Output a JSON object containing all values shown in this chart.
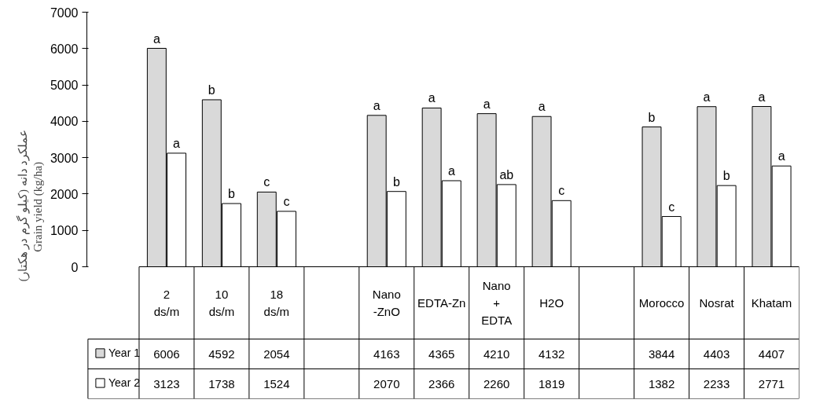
{
  "chart_data": {
    "type": "bar",
    "ylabel": "عملکرد دانه (کیلو گرم در هکتار)\nGrain  yield (kg/ha)",
    "categories": [
      "2 ds/m",
      "10 ds/m",
      "18 ds/m",
      null,
      "Nano -ZnO",
      "EDTA-Zn",
      "Nano + EDTA",
      "H2O",
      null,
      "Morocco",
      "Nosrat",
      "Khatam"
    ],
    "series": [
      {
        "name": "Year 1",
        "color": "#d9d9d9",
        "values": [
          6006,
          4592,
          2054,
          null,
          4163,
          4365,
          4210,
          4132,
          null,
          3844,
          4403,
          4407
        ]
      },
      {
        "name": "Year 2",
        "color": "#ffffff",
        "values": [
          3123,
          1738,
          1524,
          null,
          2070,
          2366,
          2260,
          1819,
          null,
          1382,
          2233,
          2771
        ]
      }
    ],
    "ylim": [
      0,
      7000
    ],
    "yticks": [
      0,
      1000,
      2000,
      3000,
      4000,
      5000,
      6000,
      7000
    ],
    "grid": false,
    "legend": "bottom left",
    "data_labels": true,
    "annotations": [
      "a",
      "a",
      "b",
      "b",
      "c",
      "c",
      "a",
      "b",
      "a",
      "a",
      "a",
      "ab",
      "a",
      "c",
      "b",
      "c",
      "a",
      "b",
      "a",
      "a"
    ]
  }
}
